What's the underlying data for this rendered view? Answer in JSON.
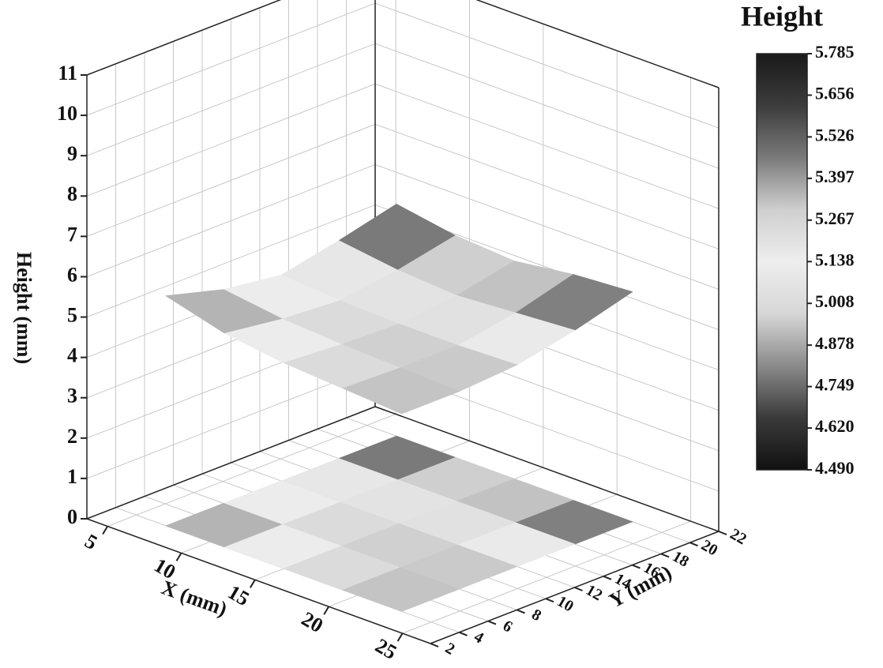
{
  "chart_data": {
    "type": "surface3d",
    "zlabel": "Height (mm)",
    "xlabel": "X (mm)",
    "ylabel": "Y (mm)",
    "colorbar_title": "Height",
    "x": [
      7,
      11,
      15,
      19,
      23
    ],
    "y": [
      4,
      8,
      12,
      16,
      20
    ],
    "z": [
      [
        5.7,
        5.3,
        5.1,
        5.4,
        5.75
      ],
      [
        5.3,
        5.1,
        5.0,
        5.2,
        5.5
      ],
      [
        5.1,
        5.0,
        4.95,
        5.1,
        5.4
      ],
      [
        5.0,
        4.95,
        4.95,
        5.2,
        5.6
      ],
      [
        4.9,
        4.9,
        5.0,
        5.3,
        5.7
      ]
    ],
    "xlim": [
      3.6,
      26.9
    ],
    "ylim": [
      2,
      22
    ],
    "zlim": [
      0,
      11
    ],
    "xticks": [
      5,
      10,
      15,
      20,
      25
    ],
    "yticks": [
      2,
      4,
      6,
      8,
      10,
      12,
      14,
      16,
      18,
      20,
      22
    ],
    "zticks": [
      0,
      1,
      2,
      3,
      4,
      5,
      6,
      7,
      8,
      9,
      10,
      11
    ],
    "clim": [
      4.49,
      5.785
    ],
    "cticks": [
      {
        "value": 4.49,
        "label": "4.490"
      },
      {
        "value": 4.62,
        "label": "4.620"
      },
      4.749,
      4.878,
      5.008,
      5.138,
      5.267,
      5.397,
      5.526,
      5.656,
      5.785
    ],
    "colormap": [
      "#111111",
      "#3a3a3a",
      "#8a8a8a",
      "#d6d6d6",
      "#eeeeee",
      "#cfcfcf",
      "#7a7a7a",
      "#3c3c3c",
      "#1a1a1a"
    ],
    "grid": true
  }
}
